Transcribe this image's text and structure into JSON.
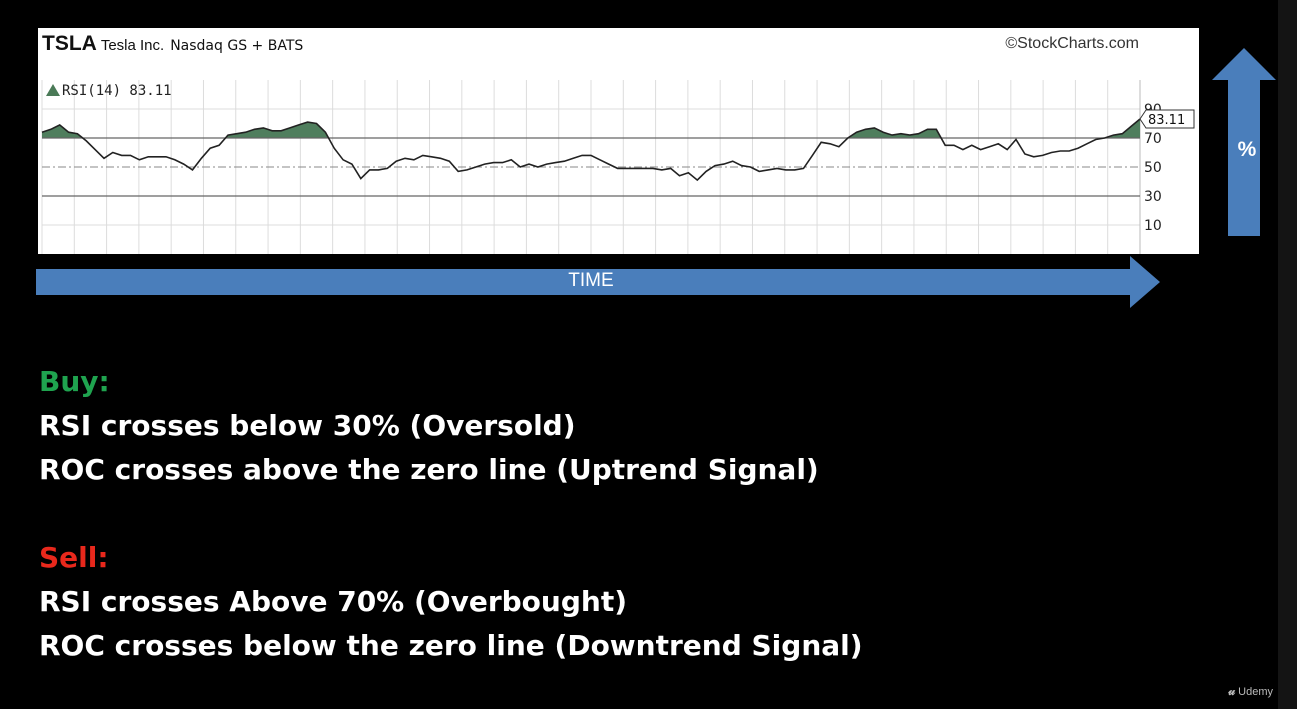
{
  "chart_header": {
    "ticker": "TSLA",
    "company": "Tesla Inc.",
    "exchange": "Nasdaq GS + BATS",
    "source": "©StockCharts.com"
  },
  "indicator_label": "RSI(14) 83.11",
  "chart_data": {
    "type": "line",
    "title": "TSLA Tesla Inc. Nasdaq GS + BATS",
    "series": [
      {
        "name": "RSI(14)",
        "values": [
          74,
          76,
          79,
          74,
          73,
          68,
          62,
          56,
          60,
          58,
          58,
          55,
          57,
          57,
          57,
          55,
          52,
          48,
          56,
          63,
          65,
          72,
          73,
          74,
          76,
          77,
          75,
          75,
          77,
          79,
          81,
          80,
          74,
          63,
          55,
          52,
          42,
          48,
          48,
          49,
          54,
          56,
          55,
          58,
          57,
          56,
          54,
          47,
          48,
          50,
          52,
          53,
          53,
          55,
          50,
          52,
          50,
          52,
          53,
          54,
          56,
          58,
          58,
          55,
          52,
          49,
          49,
          49,
          49,
          49,
          48,
          49,
          44,
          46,
          41,
          47,
          51,
          52,
          54,
          51,
          50,
          47,
          48,
          49,
          48,
          48,
          49,
          58,
          67,
          66,
          64,
          70,
          74,
          76,
          77,
          74,
          72,
          73,
          72,
          73,
          76,
          76,
          65,
          65,
          62,
          65,
          62,
          64,
          66,
          62,
          69,
          59,
          57,
          58,
          60,
          61,
          61,
          63,
          66,
          69,
          70,
          72,
          73,
          78,
          83.11
        ]
      }
    ],
    "ylim": [
      -10,
      110
    ],
    "yticks": [
      90,
      70,
      50,
      30,
      10
    ],
    "reference_lines": [
      70,
      50,
      30
    ],
    "last_value": "83.11",
    "grid": true,
    "annotations": {
      "x_arrow": "TIME",
      "y_arrow": "%"
    }
  },
  "rules": {
    "buy_heading": "Buy:",
    "buy_items": [
      "RSI crosses below 30% (Oversold)",
      "ROC crosses above the zero line (Uptrend Signal)"
    ],
    "sell_heading": "Sell:",
    "sell_items": [
      "RSI crosses Above 70% (Overbought)",
      "ROC crosses below the zero line (Downtrend Signal)"
    ]
  },
  "watermark": "Udemy",
  "colors": {
    "background": "#000000",
    "arrow": "#4a7ebb",
    "overbought_fill": "#4f7e5d",
    "buy": "#1fa34f",
    "sell": "#e8281c"
  }
}
